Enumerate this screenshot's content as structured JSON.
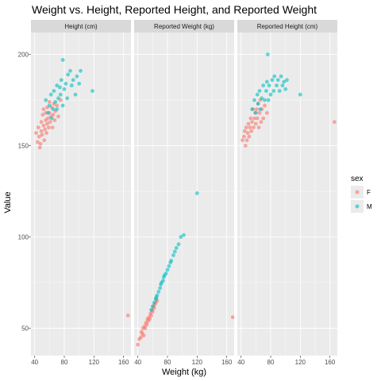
{
  "chart_data": {
    "type": "scatter",
    "title": "Weight vs. Height, Reported Height, and Reported Weight",
    "xlabel": "Weight (kg)",
    "ylabel": "Value",
    "xlim": [
      35,
      170
    ],
    "ylim": [
      35,
      212
    ],
    "x_ticks": [
      40,
      80,
      120,
      160
    ],
    "y_ticks": [
      50,
      100,
      150,
      200
    ],
    "grid": true,
    "colors": {
      "F": "#F8766D",
      "M": "#00BFC4",
      "panel": "#EBEBEB",
      "strip": "#D9D9D9",
      "grid": "#FFFFFF"
    },
    "legend": {
      "title": "sex",
      "position": "right",
      "entries": [
        {
          "label": "F",
          "color": "#F8766D"
        },
        {
          "label": "M",
          "color": "#00BFC4"
        }
      ]
    },
    "panels": [
      {
        "label": "Height (cm)",
        "series": [
          {
            "name": "F",
            "points": [
              [
                42,
                157
              ],
              [
                44,
                152
              ],
              [
                45,
                160
              ],
              [
                46,
                155
              ],
              [
                47,
                149
              ],
              [
                48,
                151
              ],
              [
                49,
                158
              ],
              [
                49,
                163
              ],
              [
                50,
                156
              ],
              [
                51,
                167
              ],
              [
                52,
                161
              ],
              [
                52,
                170
              ],
              [
                53,
                153
              ],
              [
                54,
                159
              ],
              [
                55,
                164
              ],
              [
                55,
                168
              ],
              [
                56,
                157
              ],
              [
                57,
                162
              ],
              [
                57,
                171
              ],
              [
                58,
                165
              ],
              [
                59,
                160
              ],
              [
                60,
                168
              ],
              [
                60,
                174
              ],
              [
                61,
                163
              ],
              [
                62,
                166
              ],
              [
                63,
                171
              ],
              [
                64,
                160
              ],
              [
                65,
                167
              ],
              [
                66,
                173
              ],
              [
                67,
                164
              ],
              [
                68,
                169
              ],
              [
                70,
                172
              ],
              [
                72,
                166
              ],
              [
                75,
                175
              ],
              [
                166,
                57
              ]
            ]
          },
          {
            "name": "M",
            "points": [
              [
                55,
                175
              ],
              [
                58,
                168
              ],
              [
                60,
                172
              ],
              [
                62,
                178
              ],
              [
                63,
                165
              ],
              [
                65,
                170
              ],
              [
                66,
                180
              ],
              [
                68,
                174
              ],
              [
                70,
                183
              ],
              [
                70,
                170
              ],
              [
                72,
                176
              ],
              [
                74,
                182
              ],
              [
                75,
                178
              ],
              [
                76,
                186
              ],
              [
                78,
                172
              ],
              [
                78,
                197
              ],
              [
                80,
                181
              ],
              [
                82,
                184
              ],
              [
                84,
                176
              ],
              [
                85,
                189
              ],
              [
                88,
                191
              ],
              [
                90,
                183
              ],
              [
                92,
                186
              ],
              [
                95,
                178
              ],
              [
                97,
                188
              ],
              [
                100,
                184
              ],
              [
                102,
                191
              ],
              [
                118,
                180
              ]
            ]
          }
        ]
      },
      {
        "label": "Reported Weight (kg)",
        "series": [
          {
            "name": "F",
            "points": [
              [
                40,
                41
              ],
              [
                42,
                44
              ],
              [
                44,
                45
              ],
              [
                45,
                48
              ],
              [
                46,
                47
              ],
              [
                47,
                50
              ],
              [
                48,
                46
              ],
              [
                49,
                51
              ],
              [
                50,
                50
              ],
              [
                51,
                53
              ],
              [
                52,
                52
              ],
              [
                53,
                55
              ],
              [
                54,
                54
              ],
              [
                55,
                56
              ],
              [
                56,
                55
              ],
              [
                57,
                58
              ],
              [
                58,
                57
              ],
              [
                59,
                60
              ],
              [
                60,
                59
              ],
              [
                61,
                62
              ],
              [
                62,
                61
              ],
              [
                63,
                63
              ],
              [
                64,
                64
              ],
              [
                65,
                66
              ],
              [
                66,
                65
              ],
              [
                168,
                56
              ]
            ]
          },
          {
            "name": "M",
            "points": [
              [
                58,
                60
              ],
              [
                60,
                62
              ],
              [
                62,
                64
              ],
              [
                64,
                66
              ],
              [
                65,
                67
              ],
              [
                66,
                68
              ],
              [
                68,
                70
              ],
              [
                70,
                72
              ],
              [
                71,
                74
              ],
              [
                72,
                75
              ],
              [
                74,
                76
              ],
              [
                75,
                78
              ],
              [
                76,
                79
              ],
              [
                78,
                80
              ],
              [
                80,
                82
              ],
              [
                82,
                84
              ],
              [
                84,
                86
              ],
              [
                85,
                87
              ],
              [
                88,
                90
              ],
              [
                90,
                92
              ],
              [
                92,
                94
              ],
              [
                95,
                96
              ],
              [
                98,
                100
              ],
              [
                102,
                101
              ],
              [
                120,
                124
              ]
            ]
          }
        ]
      },
      {
        "label": "Reported Height (cm)",
        "series": [
          {
            "name": "F",
            "points": [
              [
                42,
                153
              ],
              [
                44,
                155
              ],
              [
                45,
                158
              ],
              [
                46,
                150
              ],
              [
                47,
                160
              ],
              [
                48,
                153
              ],
              [
                49,
                157
              ],
              [
                50,
                162
              ],
              [
                51,
                155
              ],
              [
                52,
                160
              ],
              [
                53,
                165
              ],
              [
                54,
                158
              ],
              [
                55,
                163
              ],
              [
                56,
                170
              ],
              [
                57,
                160
              ],
              [
                58,
                165
              ],
              [
                59,
                168
              ],
              [
                60,
                162
              ],
              [
                61,
                170
              ],
              [
                62,
                165
              ],
              [
                63,
                173
              ],
              [
                64,
                160
              ],
              [
                65,
                168
              ],
              [
                66,
                175
              ],
              [
                67,
                163
              ],
              [
                68,
                170
              ],
              [
                70,
                165
              ],
              [
                72,
                172
              ],
              [
                75,
                168
              ],
              [
                166,
                163
              ]
            ]
          },
          {
            "name": "M",
            "points": [
              [
                55,
                170
              ],
              [
                58,
                175
              ],
              [
                60,
                168
              ],
              [
                62,
                178
              ],
              [
                63,
                173
              ],
              [
                65,
                180
              ],
              [
                66,
                170
              ],
              [
                68,
                176
              ],
              [
                70,
                183
              ],
              [
                72,
                175
              ],
              [
                74,
                180
              ],
              [
                75,
                185
              ],
              [
                76,
                200
              ],
              [
                77,
                175
              ],
              [
                78,
                183
              ],
              [
                80,
                178
              ],
              [
                82,
                186
              ],
              [
                84,
                180
              ],
              [
                85,
                188
              ],
              [
                88,
                183
              ],
              [
                90,
                186
              ],
              [
                92,
                180
              ],
              [
                94,
                188
              ],
              [
                96,
                183
              ],
              [
                98,
                185
              ],
              [
                100,
                181
              ],
              [
                102,
                186
              ],
              [
                120,
                178
              ]
            ]
          }
        ]
      }
    ]
  }
}
